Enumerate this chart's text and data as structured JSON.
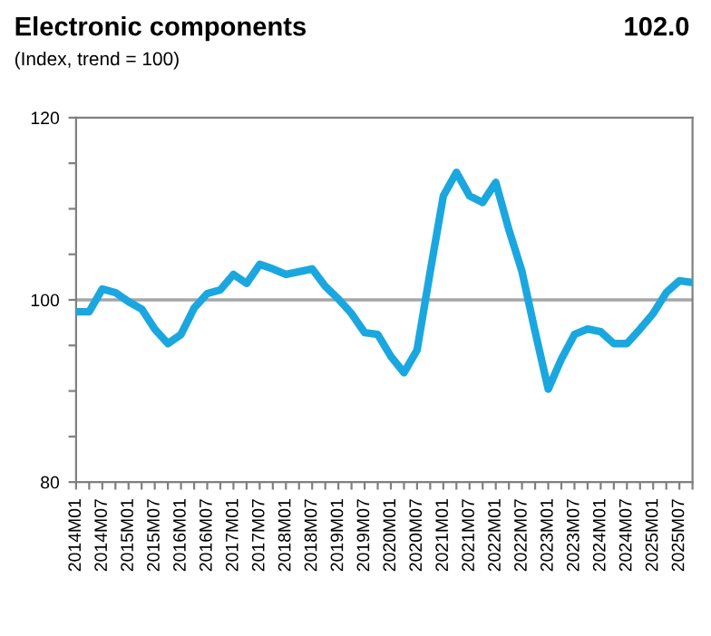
{
  "chart_data": {
    "type": "line",
    "title": "Electronic components",
    "subtitle": "(Index, trend = 100)",
    "annotations": [
      "102.0"
    ],
    "categories": [
      "2014M01",
      null,
      "2014M07",
      null,
      "2015M01",
      null,
      "2015M07",
      null,
      "2016M01",
      null,
      "2016M07",
      null,
      "2017M01",
      null,
      "2017M07",
      null,
      "2018M01",
      null,
      "2018M07",
      null,
      "2019M01",
      null,
      "2019M07",
      null,
      "2020M01",
      null,
      "2020M07",
      null,
      "2021M01",
      null,
      "2021M07",
      null,
      "2022M01",
      null,
      "2022M07",
      null,
      "2023M01",
      null,
      "2023M07",
      null,
      "2024M01",
      null,
      "2024M07",
      null,
      "2025M01",
      null,
      "2025M07",
      null
    ],
    "series": [
      {
        "color": "#1aa7e0",
        "values": [
          98.7,
          98.7,
          101.2,
          100.8,
          99.8,
          99.0,
          96.8,
          95.2,
          96.2,
          99.1,
          100.7,
          101.1,
          102.8,
          101.8,
          103.9,
          103.4,
          102.8,
          103.1,
          103.4,
          101.5,
          100.1,
          98.5,
          96.4,
          96.2,
          93.8,
          92.0,
          94.5,
          103.1,
          111.4,
          114.0,
          111.4,
          110.7,
          112.9,
          107.7,
          103.1,
          96.5,
          90.2,
          93.5,
          96.2,
          96.8,
          96.5,
          95.2,
          95.2,
          96.8,
          98.5,
          100.8,
          102.1,
          101.9
        ]
      }
    ],
    "ylim": [
      80,
      120
    ],
    "yticks": [
      80,
      {
        "value": 85,
        "label": null
      },
      {
        "value": 90,
        "label": null
      },
      {
        "value": 95,
        "label": null
      },
      100,
      {
        "value": 105,
        "label": null
      },
      {
        "value": 110,
        "label": null
      },
      {
        "value": 115,
        "label": null
      },
      120
    ],
    "ref_lines": [
      {
        "axis": "y",
        "value": 100,
        "color": "#a6a6a6"
      }
    ],
    "grid": false,
    "legend": false,
    "marker": "none",
    "line_style": "solid"
  }
}
